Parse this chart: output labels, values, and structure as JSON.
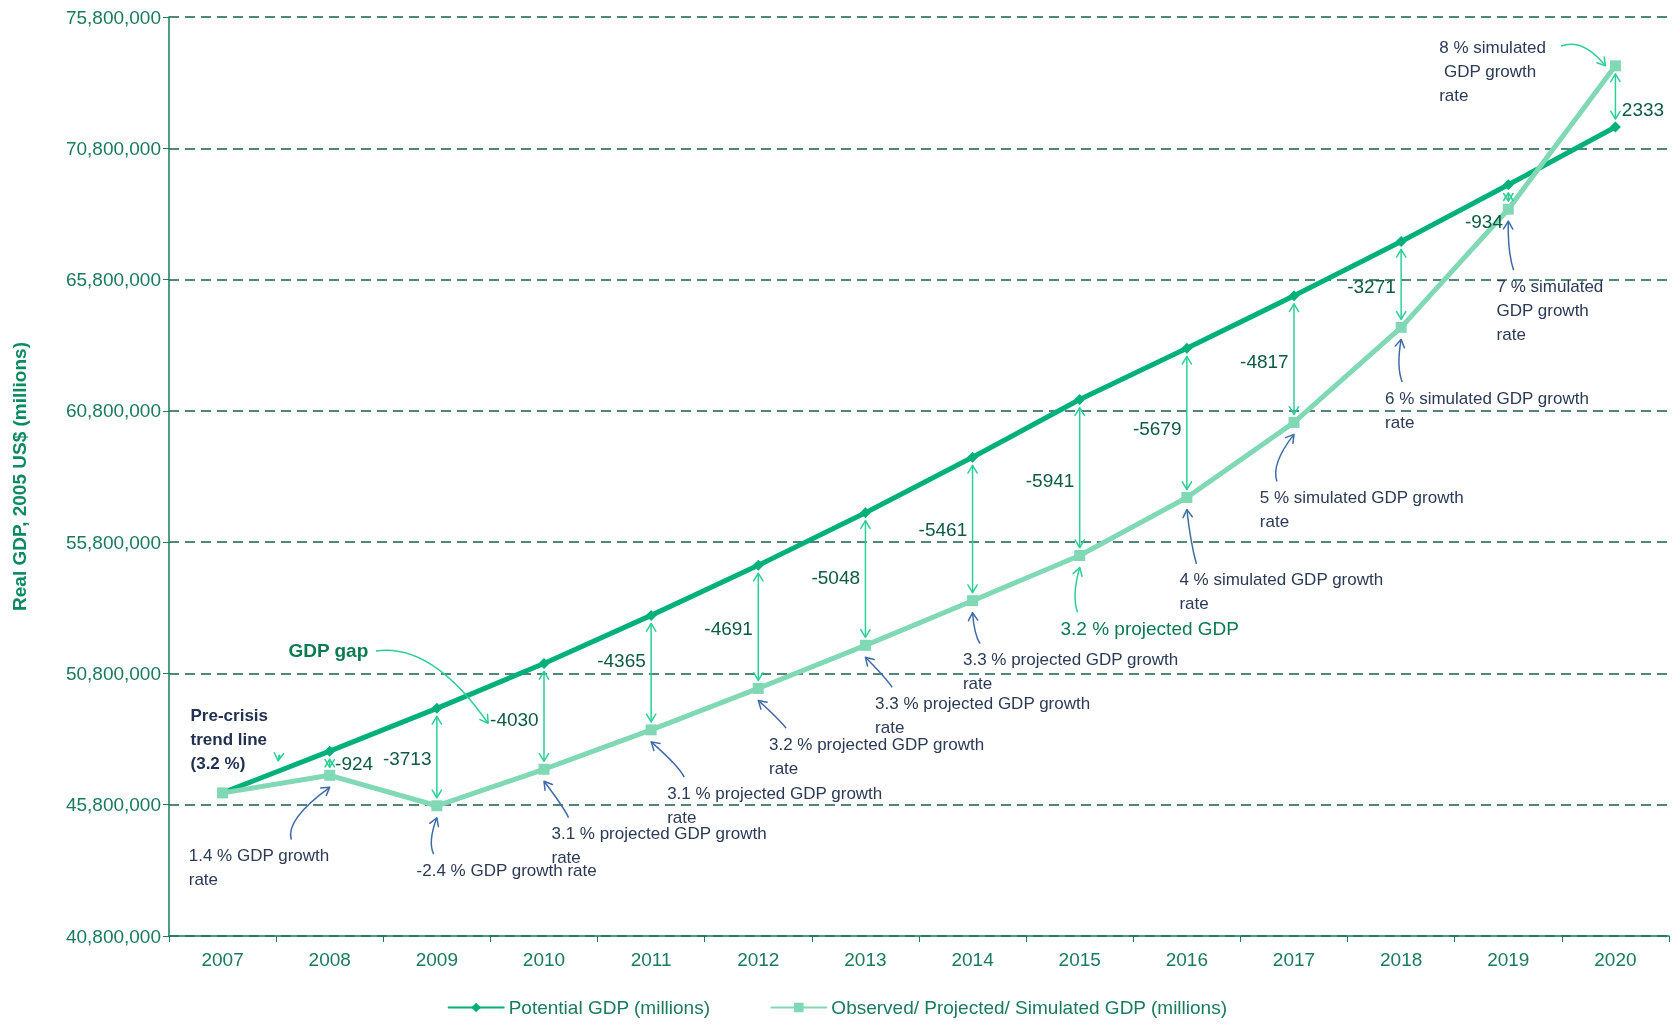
{
  "chart_data": {
    "type": "line",
    "ylabel": "Real GDP, 2005 US$ (millions)",
    "categories": [
      "2007",
      "2008",
      "2009",
      "2010",
      "2011",
      "2012",
      "2013",
      "2014",
      "2015",
      "2016",
      "2017",
      "2018",
      "2019",
      "2020"
    ],
    "series": [
      {
        "name": "Potential GDP (millions)",
        "color": "#00b07a",
        "marker": "diamond",
        "values": [
          46250000,
          47840000,
          49470000,
          51180000,
          53010000,
          54920000,
          56920000,
          59030000,
          61230000,
          63180000,
          65180000,
          67250000,
          69410000,
          71610000
        ]
      },
      {
        "name": "Observed/ Projected/ Simulated GDP (millions)",
        "color": "#80d8b4",
        "marker": "square",
        "values": [
          46250000,
          46920000,
          45760000,
          47150000,
          48650000,
          50230000,
          51870000,
          53570000,
          55290000,
          57500000,
          60360000,
          63980000,
          68480000,
          73940000
        ]
      }
    ],
    "ylim": [
      40800000,
      75800000
    ],
    "yticks": [
      {
        "value": 40800000,
        "label": "40,800,000"
      },
      {
        "value": 45800000,
        "label": "45,800,000"
      },
      {
        "value": 50800000,
        "label": "50,800,000"
      },
      {
        "value": 55800000,
        "label": "55,800,000"
      },
      {
        "value": 60800000,
        "label": "60,800,000"
      },
      {
        "value": 65800000,
        "label": "65,800,000"
      },
      {
        "value": 70800000,
        "label": "70,800,000"
      },
      {
        "value": 75800000,
        "label": "75,800,000"
      }
    ],
    "grid": "y",
    "legend": "bottom",
    "line_style": "solid",
    "annotations": [
      "Pre-crisis trend line (3.2 %)",
      "GDP gap",
      "1.4 % GDP growth rate",
      "-2.4 % GDP growth rate",
      "3.1 % projected GDP growth rate",
      "3.1 % projected GDP growth rate",
      "3.2 % projected GDP growth rate",
      "3.3 % projected GDP growth rate",
      "3.3 % projected GDP growth rate",
      "3.2 % projected GDP",
      "4 % simulated GDP growth rate",
      "5 % simulated GDP growth rate",
      "6 % simulated GDP growth rate",
      "7 % simulated GDP growth rate",
      "8 % simulated GDP growth rate",
      "-924",
      "-3713",
      "-4030",
      "-4365",
      "-4691",
      "-5048",
      "-5461",
      "-5941",
      "-5679",
      "-4817",
      "-3271",
      "-934",
      "2333"
    ]
  }
}
